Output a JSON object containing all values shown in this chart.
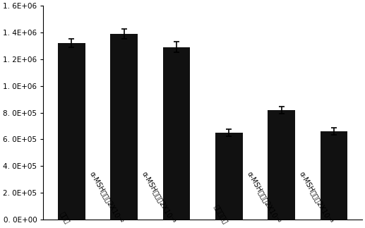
{
  "categories": [
    "对照组",
    "α-MSH给药组2X10⁻²",
    "α-MSH给药组2X10⁻³",
    "照射对照组",
    "α-MSH预防组2X10⁻²",
    "α-MSH预防组2X10⁻³"
  ],
  "values": [
    1320000,
    1390000,
    1290000,
    650000,
    820000,
    660000
  ],
  "errors": [
    30000,
    35000,
    40000,
    25000,
    25000,
    25000
  ],
  "bar_color": "#111111",
  "ylim": [
    0,
    1600000
  ],
  "yticks": [
    0,
    200000,
    400000,
    600000,
    800000,
    1000000,
    1200000,
    1400000,
    1600000
  ],
  "ytick_labels": [
    "0. 0E+00",
    "2. 0E+05",
    "4. 0E+05",
    "6. 0E+05",
    "8. 0E+05",
    "1. 0E+06",
    "1. 2E+06",
    "1. 4E+06",
    "1. 6E+06"
  ],
  "bar_width": 0.52,
  "background_color": "#ffffff",
  "ytick_fontsize": 7.5,
  "xlabel_fontsize": 7,
  "label_rotation": -60
}
